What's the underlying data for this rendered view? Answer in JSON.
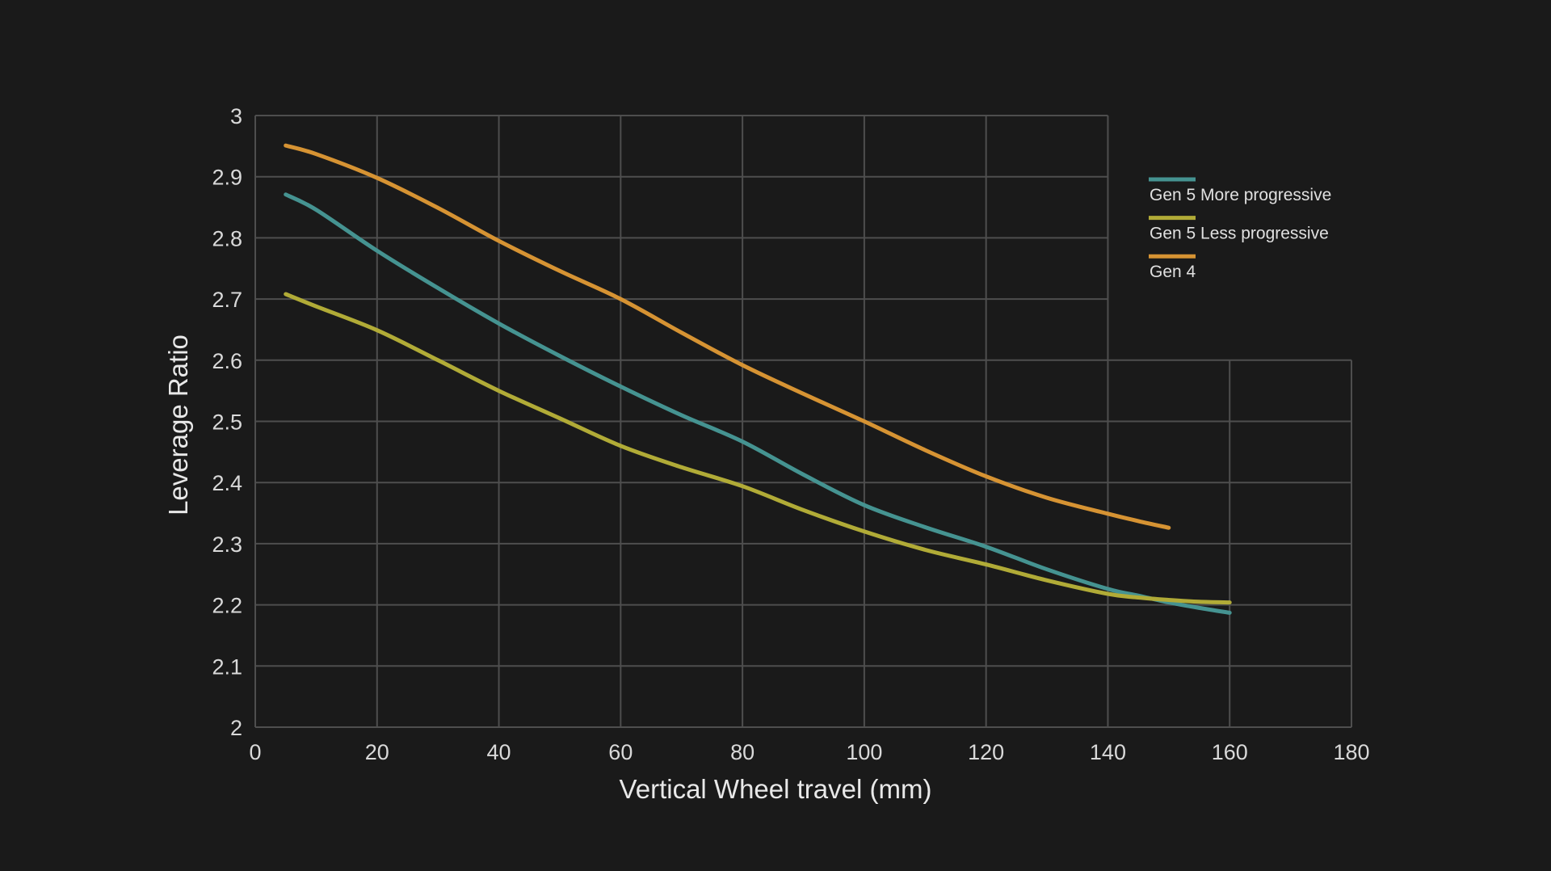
{
  "page": {
    "background_color": "#1a1a1a"
  },
  "chart_data": {
    "type": "line",
    "title": "",
    "xlabel": "Vertical Wheel travel (mm)",
    "ylabel": "Leverage Ratio",
    "xlim": [
      0,
      180
    ],
    "ylim": [
      2.0,
      3.0
    ],
    "xtick_labels": [
      "0",
      "20",
      "40",
      "60",
      "80",
      "100",
      "120",
      "140",
      "160",
      "180"
    ],
    "xtick_values": [
      0,
      20,
      40,
      60,
      80,
      100,
      120,
      140,
      160,
      180
    ],
    "ytick_labels": [
      "2",
      "2.1",
      "2.2",
      "2.3",
      "2.4",
      "2.5",
      "2.6",
      "2.7",
      "2.8",
      "2.9",
      "3"
    ],
    "ytick_values": [
      2,
      2.1,
      2.2,
      2.3,
      2.4,
      2.5,
      2.6,
      2.7,
      2.8,
      2.9,
      3
    ],
    "grid": "on",
    "grid_color": "#4e4e4e",
    "tick_text_color": "#d9d9d9",
    "axis_title_color": "#e8e8e8",
    "legend_text_color": "#e0e0e0",
    "legend_position": "outside-upper-right",
    "grid_regions": {
      "upper": {
        "x_range_mm": [
          0,
          140
        ],
        "y_range": [
          2.6,
          3.0
        ]
      },
      "lower": {
        "x_range_mm": [
          0,
          180
        ],
        "y_range": [
          2.0,
          2.6
        ]
      }
    },
    "series": [
      {
        "name": "Gen 5 More progressive",
        "color": "#459391",
        "x": [
          5,
          10,
          20,
          30,
          40,
          50,
          60,
          70,
          80,
          90,
          100,
          110,
          120,
          130,
          140,
          145,
          150,
          155,
          160
        ],
        "y": [
          2.871,
          2.846,
          2.779,
          2.718,
          2.66,
          2.607,
          2.557,
          2.51,
          2.467,
          2.413,
          2.363,
          2.327,
          2.295,
          2.258,
          2.226,
          2.215,
          2.204,
          2.195,
          2.187
        ]
      },
      {
        "name": "Gen 5 Less progressive",
        "color": "#b1ab37",
        "x": [
          5,
          10,
          20,
          30,
          40,
          50,
          60,
          70,
          80,
          90,
          100,
          110,
          120,
          130,
          140,
          145,
          150,
          155,
          160
        ],
        "y": [
          2.708,
          2.688,
          2.649,
          2.6,
          2.55,
          2.505,
          2.46,
          2.425,
          2.394,
          2.355,
          2.32,
          2.29,
          2.266,
          2.24,
          2.218,
          2.212,
          2.208,
          2.205,
          2.204
        ]
      },
      {
        "name": "Gen 4",
        "color": "#d69333",
        "x": [
          5,
          10,
          20,
          30,
          40,
          50,
          60,
          70,
          80,
          90,
          100,
          110,
          120,
          130,
          140,
          145,
          150
        ],
        "y": [
          2.951,
          2.937,
          2.898,
          2.849,
          2.795,
          2.746,
          2.7,
          2.645,
          2.592,
          2.545,
          2.5,
          2.453,
          2.41,
          2.375,
          2.349,
          2.337,
          2.326
        ]
      }
    ]
  }
}
